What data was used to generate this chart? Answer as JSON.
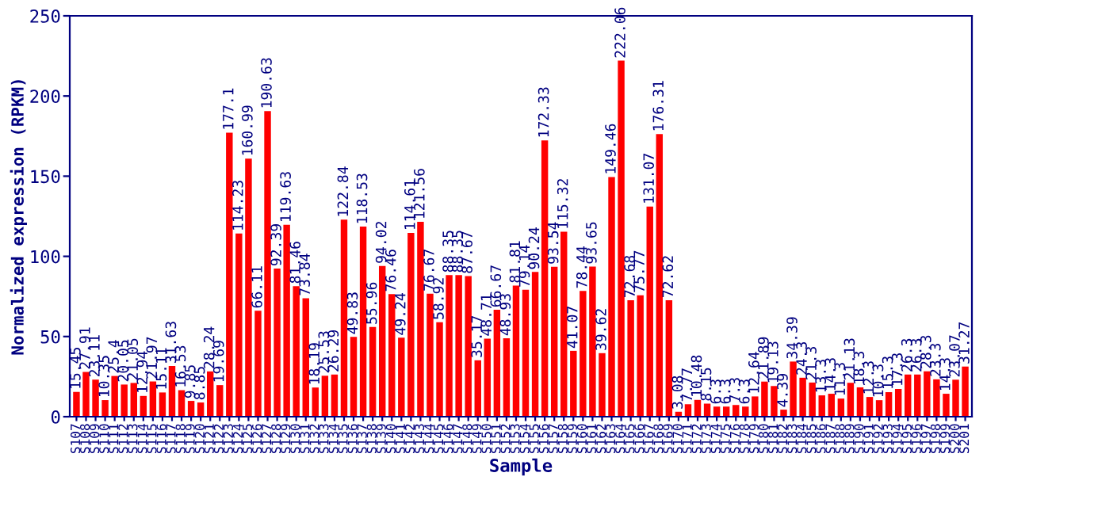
{
  "chart_data": {
    "type": "bar",
    "xlabel": "Sample",
    "ylabel": "Normalized expression (RPKM)",
    "categories": [
      "S107",
      "S108",
      "S109",
      "S110",
      "S111",
      "S112",
      "S113",
      "S114",
      "S115",
      "S116",
      "S117",
      "S118",
      "S119",
      "S120",
      "S121",
      "S122",
      "S123",
      "S124",
      "S125",
      "S126",
      "S127",
      "S128",
      "S129",
      "S130",
      "S131",
      "S132",
      "S133",
      "S134",
      "S135",
      "S136",
      "S137",
      "S138",
      "S139",
      "S140",
      "S141",
      "S142",
      "S143",
      "S144",
      "S145",
      "S146",
      "S147",
      "S148",
      "S149",
      "S150",
      "S151",
      "S152",
      "S153",
      "S154",
      "S155",
      "S156",
      "S157",
      "S158",
      "S159",
      "S160",
      "S161",
      "S162",
      "S163",
      "S164",
      "S165",
      "S166",
      "S167",
      "S168",
      "S169",
      "S170",
      "S171",
      "S172",
      "S173",
      "S174",
      "S175",
      "S176",
      "S178",
      "S179",
      "S180",
      "S181",
      "S182",
      "S183",
      "S184",
      "S185",
      "S186",
      "S187",
      "S188",
      "S189",
      "S190",
      "S191",
      "S192",
      "S193",
      "S194",
      "S195",
      "S196",
      "S197",
      "S198",
      "S199",
      "S200",
      "S201"
    ],
    "values": [
      15.45,
      27.91,
      23.11,
      10.35,
      25.4,
      20.05,
      21.05,
      12.94,
      21.97,
      15.11,
      31.63,
      16.53,
      9.85,
      8.85,
      28.24,
      19.69,
      177.1,
      114.23,
      160.99,
      66.11,
      190.63,
      92.39,
      119.63,
      81.46,
      73.84,
      18.19,
      25.53,
      26.29,
      122.84,
      49.83,
      118.53,
      55.96,
      94.02,
      76.46,
      49.24,
      114.61,
      121.56,
      76.67,
      58.92,
      88.35,
      88.35,
      87.67,
      35.17,
      48.71,
      66.67,
      48.93,
      81.81,
      79.14,
      90.24,
      172.33,
      93.54,
      115.32,
      41.07,
      78.44,
      93.65,
      39.62,
      149.46,
      222.06,
      72.68,
      75.77,
      131.07,
      176.31,
      72.62,
      3.08,
      7.77,
      10.48,
      8.15,
      6.3,
      6.3,
      7.3,
      6.3,
      12.64,
      21.89,
      19.13,
      4.39,
      34.39,
      24.3,
      21.3,
      13.3,
      14.3,
      11.3,
      21.13,
      18.3,
      12.3,
      10.3,
      15.3,
      17.3,
      26.3,
      26.3,
      28.3,
      23.3,
      14.3,
      23.07,
      31.27
    ],
    "color": "#ff0000",
    "ylim": [
      0,
      250
    ],
    "yticks": [
      0,
      50,
      100,
      150,
      200,
      250
    ],
    "data_labels": true,
    "grid": false,
    "legend": false
  }
}
